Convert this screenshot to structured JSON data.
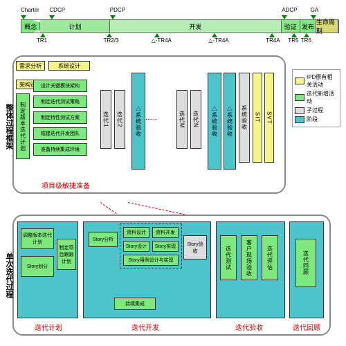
{
  "timeline": {
    "top": [
      "Charter",
      "CDCP",
      "PDCP",
      "ADCP",
      "GA"
    ],
    "top_pos": [
      0,
      9,
      28,
      82,
      91
    ],
    "segs": [
      {
        "label": "概念",
        "w": 6,
        "color": "#7de87d"
      },
      {
        "label": "计划",
        "w": 22,
        "color": "#9de89d"
      },
      {
        "label": "开发",
        "w": 54,
        "color": "#b5edb5"
      },
      {
        "label": "验证",
        "w": 6,
        "color": "#88e888"
      },
      {
        "label": "发布",
        "w": 5,
        "color": "#7de87d"
      },
      {
        "label": "生命周期",
        "w": 7,
        "color": "#d8d870"
      }
    ],
    "bottom": [
      "TR1",
      "TR2/3",
      "△-TR4A",
      "△-TR4A",
      "TR4A",
      "TR5",
      "TR6"
    ],
    "bottom_pos": [
      6,
      27,
      42,
      60,
      78,
      85,
      89
    ]
  },
  "upper": {
    "title": "整体过程框架",
    "reqbox": "需求分析",
    "sysdesign": "系统设计",
    "arch": "架构设计",
    "leftcol_head": "制定版本迭代计划",
    "leftcol": [
      "设计关键模块架构",
      "制定迭代测试策略",
      "制定特性测试方案",
      "框建迭代开发团队",
      "准备持续集成环境"
    ],
    "iter": [
      "迭代1",
      "迭代2",
      "迭代M",
      "迭代N"
    ],
    "verify": "△系统验收",
    "sysverify": "系统验收",
    "sit": "SIT",
    "svt": "SVT",
    "footer": "项目级敏捷准备"
  },
  "lower": {
    "title": "单次迭代过程",
    "c1": [
      "调整版本迭代计划",
      "Story划分",
      "制定项目跟踪计划"
    ],
    "c2": [
      "Story分析",
      "资料设计",
      "资料开发",
      "Story设计",
      "Story实现",
      "Story用例设计与实现",
      "持续集成",
      "Story验收"
    ],
    "c3": [
      "迭代测试",
      "客户现场验收",
      "迭代评估"
    ],
    "c4": "迭代回顾",
    "labels": [
      "迭代计划",
      "迭代开发",
      "迭代验收",
      "迭代回顾"
    ]
  },
  "legend": {
    "items": [
      {
        "c": "#f5f58a",
        "t": "IPD原有相关活动"
      },
      {
        "c": "#7de87d",
        "t": "迭代新增活动"
      },
      {
        "c": "#ddd",
        "t": "子过程"
      },
      {
        "c": "#4dc3cc",
        "t": "阶段"
      }
    ]
  }
}
